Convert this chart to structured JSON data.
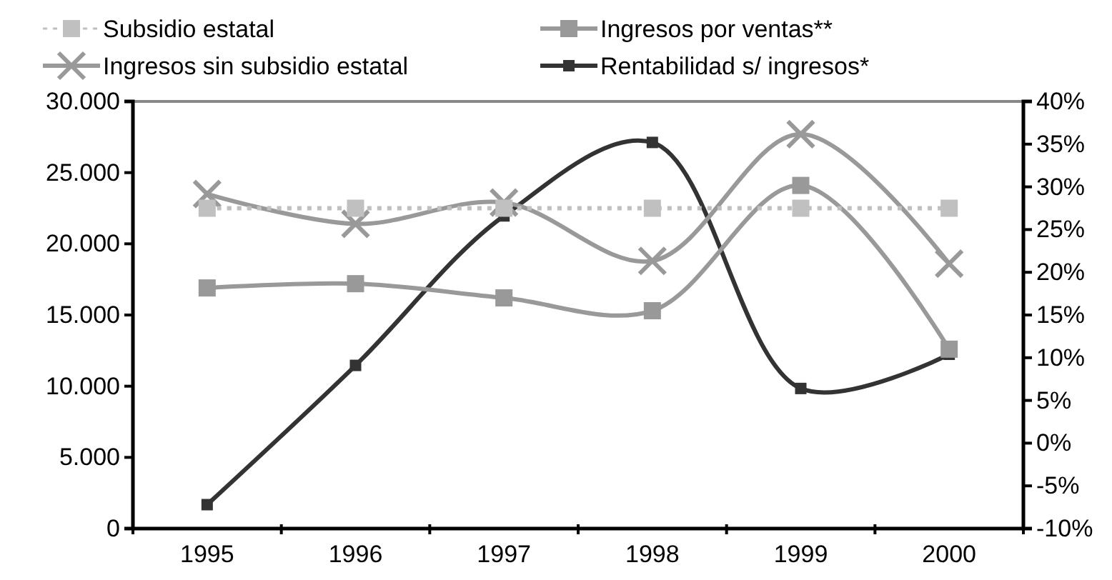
{
  "chart_data": {
    "type": "line",
    "categories": [
      "1995",
      "1996",
      "1997",
      "1998",
      "1999",
      "2000"
    ],
    "series": [
      {
        "name": "Subsidio estatal",
        "color": "#c0c0c0",
        "marker": "square",
        "line_style": "dotted",
        "values": [
          22500,
          22500,
          22500,
          22500,
          22500,
          22500
        ]
      },
      {
        "name": "Ingresos por ventas**",
        "color": "#999999",
        "marker": "square",
        "line_style": "solid",
        "values": [
          16900,
          17200,
          16200,
          15300,
          24100,
          12600
        ]
      },
      {
        "name": "Ingresos sin subsidio estatal",
        "color": "#999999",
        "marker": "cross",
        "line_style": "solid",
        "values": [
          23500,
          21400,
          22900,
          18800,
          27700,
          18600
        ]
      },
      {
        "name": "Rentabilidad s/ ingresos*",
        "color": "#333333",
        "marker": "square",
        "line_style": "solid",
        "axis": "y2",
        "values": [
          -7.2,
          9.1,
          26.6,
          35.2,
          6.4,
          10.4
        ]
      }
    ],
    "ylim": [
      0,
      30000
    ],
    "yticks": [
      0,
      {
        "value": 5000,
        "label": "5.000"
      },
      {
        "value": 10000,
        "label": "10.000"
      },
      {
        "value": 15000,
        "label": "15.000"
      },
      {
        "value": 20000,
        "label": "20.000"
      },
      {
        "value": 25000,
        "label": "25.000"
      },
      {
        "value": 30000,
        "label": "30.000"
      }
    ],
    "y2lim": [
      -10,
      40
    ],
    "y2ticks": [
      {
        "value": -10,
        "label": "-10%"
      },
      {
        "value": -5,
        "label": "-5%"
      },
      {
        "value": 0,
        "label": "0%"
      },
      {
        "value": 5,
        "label": "5%"
      },
      {
        "value": 10,
        "label": "10%"
      },
      {
        "value": 15,
        "label": "15%"
      },
      {
        "value": 20,
        "label": "20%"
      },
      {
        "value": 25,
        "label": "25%"
      },
      {
        "value": 30,
        "label": "30%"
      },
      {
        "value": 35,
        "label": "35%"
      },
      {
        "value": 40,
        "label": "40%"
      }
    ],
    "grid": false,
    "legend": "top"
  }
}
